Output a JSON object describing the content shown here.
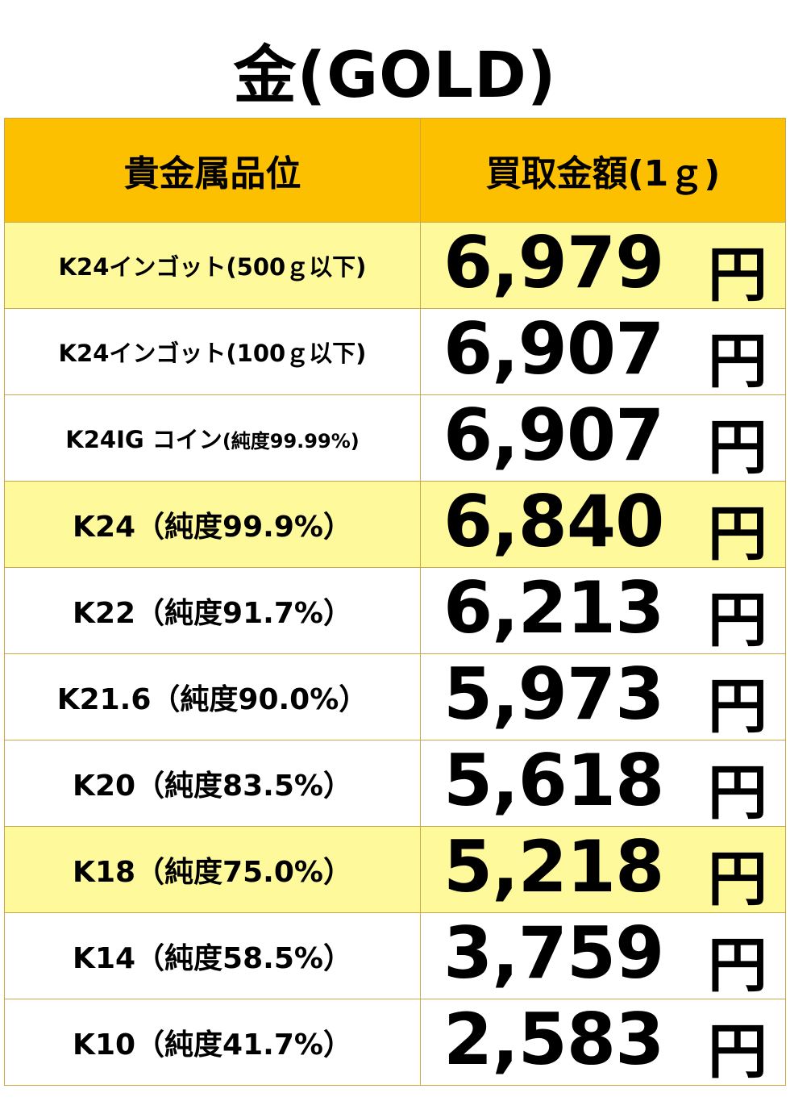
{
  "title": "金(GOLD)",
  "header": {
    "name_col": "貴金属品位",
    "price_col": "買取金額(1ｇ)"
  },
  "currency": "円",
  "colors": {
    "header_bg": "#fdc000",
    "highlight_row_bg": "#fef99a",
    "grid_line": "#c9a84a"
  },
  "rows": [
    {
      "name": "K24インゴット",
      "note": "(500ｇ以下)",
      "price": "6,979",
      "highlight": true
    },
    {
      "name": "K24インゴット",
      "note": "(100ｇ以下)",
      "price": "6,907",
      "highlight": false
    },
    {
      "name": "K24IG コイン",
      "note": "(純度99.99%)",
      "price": "6,907",
      "highlight": false
    },
    {
      "name": "K24",
      "note": "（純度99.9%）",
      "price": "6,840",
      "highlight": true
    },
    {
      "name": "K22",
      "note": "（純度91.7%）",
      "price": "6,213",
      "highlight": false
    },
    {
      "name": "K21.6",
      "note": "（純度90.0%）",
      "price": "5,973",
      "highlight": false
    },
    {
      "name": "K20",
      "note": "（純度83.5%）",
      "price": "5,618",
      "highlight": false
    },
    {
      "name": "K18",
      "note": "（純度75.0%）",
      "price": "5,218",
      "highlight": true
    },
    {
      "name": "K14",
      "note": "（純度58.5%）",
      "price": "3,759",
      "highlight": false
    },
    {
      "name": "K10",
      "note": "（純度41.7%）",
      "price": "2,583",
      "highlight": false
    }
  ]
}
